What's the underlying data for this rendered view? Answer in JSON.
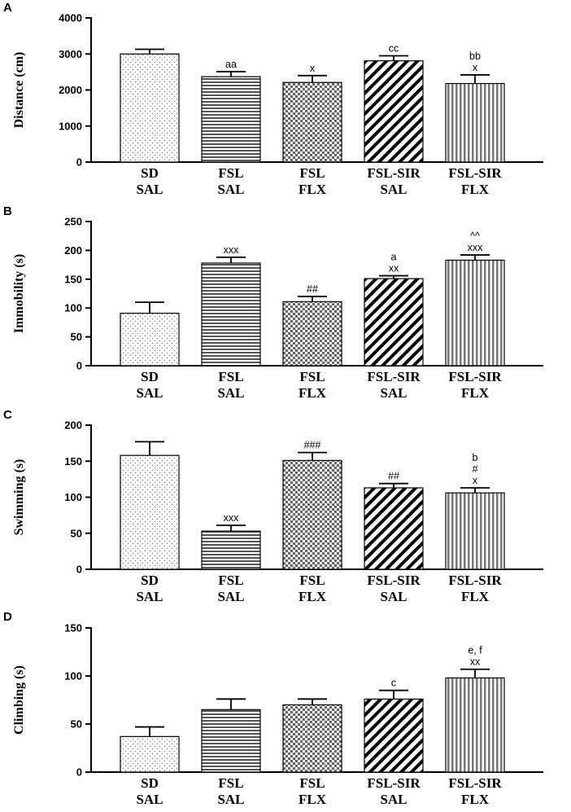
{
  "figure": {
    "description_labels": [
      "A",
      "B",
      "C",
      "D"
    ]
  },
  "chart_data": [
    {
      "panel": "A",
      "type": "bar",
      "ylabel": "Distance (cm)",
      "ylim": [
        0,
        4000
      ],
      "yticks": [
        0,
        1000,
        2000,
        3000,
        4000
      ],
      "categories": [
        [
          "SD",
          "SAL"
        ],
        [
          "FSL",
          "SAL"
        ],
        [
          "FSL",
          "FLX"
        ],
        [
          "FSL-SIR",
          "SAL"
        ],
        [
          "FSL-SIR",
          "FLX"
        ]
      ],
      "values": [
        3000,
        2370,
        2210,
        2810,
        2180
      ],
      "errors": [
        130,
        140,
        190,
        140,
        240
      ],
      "annotations": [
        [],
        [
          "aa"
        ],
        [
          "x"
        ],
        [
          "cc"
        ],
        [
          "bb",
          "x"
        ]
      ]
    },
    {
      "panel": "B",
      "type": "bar",
      "ylabel": "Immobility (s)",
      "ylim": [
        0,
        250
      ],
      "yticks": [
        0,
        50,
        100,
        150,
        200,
        250
      ],
      "categories": [
        [
          "SD",
          "SAL"
        ],
        [
          "FSL",
          "SAL"
        ],
        [
          "FSL",
          "FLX"
        ],
        [
          "FSL-SIR",
          "SAL"
        ],
        [
          "FSL-SIR",
          "FLX"
        ]
      ],
      "values": [
        91,
        178,
        111,
        151,
        183
      ],
      "errors": [
        19,
        10,
        9,
        5,
        9
      ],
      "annotations": [
        [],
        [
          "xxx"
        ],
        [
          "##"
        ],
        [
          "a",
          "xx"
        ],
        [
          "^^",
          "xxx"
        ]
      ]
    },
    {
      "panel": "C",
      "type": "bar",
      "ylabel": "Swimming (s)",
      "ylim": [
        0,
        200
      ],
      "yticks": [
        0,
        50,
        100,
        150,
        200
      ],
      "categories": [
        [
          "SD",
          "SAL"
        ],
        [
          "FSL",
          "SAL"
        ],
        [
          "FSL",
          "FLX"
        ],
        [
          "FSL-SIR",
          "SAL"
        ],
        [
          "FSL-SIR",
          "FLX"
        ]
      ],
      "values": [
        158,
        53,
        151,
        113,
        106
      ],
      "errors": [
        19,
        8,
        11,
        6,
        7
      ],
      "annotations": [
        [],
        [
          "xxx"
        ],
        [
          "###"
        ],
        [
          "##"
        ],
        [
          "b",
          "#",
          "x"
        ]
      ]
    },
    {
      "panel": "D",
      "type": "bar",
      "ylabel": "Climbing (s)",
      "ylim": [
        0,
        150
      ],
      "yticks": [
        0,
        50,
        100,
        150
      ],
      "categories": [
        [
          "SD",
          "SAL"
        ],
        [
          "FSL",
          "SAL"
        ],
        [
          "FSL",
          "FLX"
        ],
        [
          "FSL-SIR",
          "SAL"
        ],
        [
          "FSL-SIR",
          "FLX"
        ]
      ],
      "values": [
        37,
        65,
        70,
        76,
        98
      ],
      "errors": [
        10,
        11,
        6,
        9,
        9
      ],
      "annotations": [
        [],
        [],
        [],
        [
          "c"
        ],
        [
          "e, f",
          "xx"
        ]
      ]
    }
  ]
}
